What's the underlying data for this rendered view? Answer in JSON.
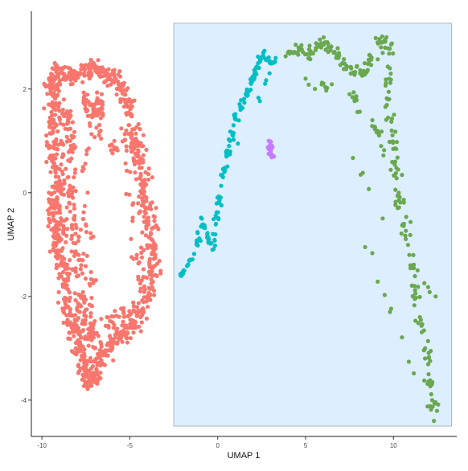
{
  "chart_data": {
    "type": "scatter",
    "title": "",
    "xlabel": "UMAP 1",
    "ylabel": "UMAP 2",
    "xlim": [
      -10.6,
      13.6
    ],
    "ylim": [
      -4.7,
      3.5
    ],
    "xticks": [
      -10,
      -5,
      0,
      5,
      10
    ],
    "xtick_labels": [
      "-10",
      "-5",
      "0",
      "5",
      "10"
    ],
    "yticks": [
      2,
      0,
      -2,
      -4
    ],
    "ytick_labels": [
      "2",
      "0",
      "-2",
      "-4"
    ],
    "grid": false,
    "legend": "none",
    "highlight_region": {
      "x": [
        -2.5,
        13.3
      ],
      "y": [
        -4.5,
        3.27
      ],
      "fill": "#ddeeff",
      "stroke": "#9aa7b4"
    },
    "series": [
      {
        "color": "#f8766d",
        "shape": "left ring (clustered cells)",
        "points": [
          [
            -9.6,
            2.2
          ],
          [
            -9.3,
            1.9
          ],
          [
            -9.5,
            1.4
          ],
          [
            -9.2,
            1.0
          ],
          [
            -9.4,
            0.6
          ],
          [
            -9.1,
            0.2
          ],
          [
            -9.3,
            -0.2
          ],
          [
            -9.0,
            -0.6
          ],
          [
            -9.2,
            -1.0
          ],
          [
            -8.8,
            -1.4
          ],
          [
            -8.7,
            -1.8
          ],
          [
            -8.5,
            -2.2
          ],
          [
            -8.3,
            -2.6
          ],
          [
            -8.0,
            -2.9
          ],
          [
            -7.7,
            -3.2
          ],
          [
            -7.5,
            -3.5
          ],
          [
            -7.2,
            -3.7
          ],
          [
            -6.9,
            -3.4
          ],
          [
            -6.5,
            -3.1
          ],
          [
            -6.0,
            -2.9
          ],
          [
            -5.5,
            -2.8
          ],
          [
            -5.0,
            -2.6
          ],
          [
            -4.5,
            -2.3
          ],
          [
            -4.0,
            -2.0
          ],
          [
            -3.7,
            -1.6
          ],
          [
            -3.6,
            -1.2
          ],
          [
            -3.8,
            -0.8
          ],
          [
            -4.0,
            -0.3
          ],
          [
            -4.2,
            0.1
          ],
          [
            -4.3,
            0.6
          ],
          [
            -4.6,
            1.0
          ],
          [
            -4.9,
            1.5
          ],
          [
            -5.3,
            1.9
          ],
          [
            -5.8,
            2.2
          ],
          [
            -6.4,
            2.3
          ],
          [
            -7.0,
            2.4
          ],
          [
            -7.6,
            2.3
          ],
          [
            -8.2,
            2.2
          ],
          [
            -8.8,
            2.3
          ],
          [
            -9.4,
            2.4
          ],
          [
            -8.8,
            1.6
          ],
          [
            -8.3,
            1.1
          ],
          [
            -8.5,
            0.3
          ],
          [
            -8.2,
            -0.5
          ],
          [
            -7.9,
            -1.2
          ],
          [
            -7.6,
            -2.0
          ],
          [
            -7.2,
            -2.7
          ],
          [
            -7.0,
            -3.0
          ],
          [
            -7.6,
            1.8
          ],
          [
            -7.0,
            1.5
          ],
          [
            -6.6,
            1.9
          ],
          [
            -8.9,
            -0.9
          ],
          [
            -9.6,
            0.0
          ],
          [
            -8.6,
            -2.5
          ],
          [
            -6.2,
            -2.6
          ],
          [
            -4.4,
            -1.9
          ],
          [
            -5.2,
            1.2
          ],
          [
            -4.4,
            0.3
          ]
        ]
      },
      {
        "color": "#00bfc4",
        "shape": "left branch of arch",
        "points": [
          [
            -2.1,
            -1.6
          ],
          [
            -1.7,
            -1.4
          ],
          [
            -1.2,
            -1.0
          ],
          [
            -0.9,
            -0.5
          ],
          [
            -0.6,
            -0.8
          ],
          [
            -0.3,
            -1.1
          ],
          [
            -0.1,
            -0.6
          ],
          [
            0.1,
            -0.2
          ],
          [
            0.3,
            0.3
          ],
          [
            0.5,
            0.7
          ],
          [
            0.7,
            1.0
          ],
          [
            0.9,
            1.3
          ],
          [
            1.3,
            1.6
          ],
          [
            1.6,
            1.9
          ],
          [
            1.9,
            2.1
          ],
          [
            2.1,
            2.3
          ],
          [
            2.3,
            2.5
          ],
          [
            2.6,
            2.7
          ],
          [
            3.0,
            2.5
          ],
          [
            3.3,
            2.6
          ]
        ]
      },
      {
        "color": "#c77cff",
        "shape": "small isolated cluster",
        "points": [
          [
            2.9,
            1.0
          ],
          [
            3.1,
            0.9
          ],
          [
            3.0,
            0.8
          ],
          [
            3.2,
            0.7
          ],
          [
            2.9,
            0.75
          ]
        ]
      },
      {
        "color": "#6aa84f",
        "shape": "right branch of arch",
        "points": [
          [
            4.0,
            2.7
          ],
          [
            4.6,
            2.8
          ],
          [
            5.2,
            2.6
          ],
          [
            5.6,
            2.8
          ],
          [
            6.1,
            2.9
          ],
          [
            6.6,
            2.7
          ],
          [
            7.1,
            2.5
          ],
          [
            7.6,
            2.4
          ],
          [
            8.1,
            2.3
          ],
          [
            8.6,
            2.5
          ],
          [
            9.1,
            2.9
          ],
          [
            9.6,
            3.0
          ],
          [
            9.8,
            2.4
          ],
          [
            9.7,
            1.8
          ],
          [
            9.9,
            1.2
          ],
          [
            10.1,
            0.6
          ],
          [
            10.3,
            0.0
          ],
          [
            10.6,
            -0.6
          ],
          [
            10.9,
            -1.2
          ],
          [
            11.2,
            -1.8
          ],
          [
            11.5,
            -2.4
          ],
          [
            11.8,
            -3.0
          ],
          [
            12.0,
            -3.5
          ],
          [
            12.2,
            -4.0
          ],
          [
            12.3,
            -4.4
          ],
          [
            5.0,
            2.2
          ],
          [
            7.5,
            1.9
          ],
          [
            8.8,
            1.4
          ],
          [
            9.3,
            0.9
          ],
          [
            12.4,
            -2.0
          ]
        ]
      }
    ]
  }
}
